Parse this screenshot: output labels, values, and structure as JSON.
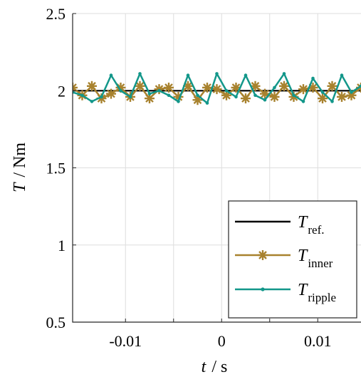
{
  "chart_data": {
    "type": "line",
    "xlabel": {
      "symbol": "t",
      "unit": "/ s"
    },
    "ylabel": {
      "symbol": "T",
      "unit": "/ Nm"
    },
    "xlim": [
      -0.0155,
      0.0145
    ],
    "ylim": [
      0.5,
      2.5
    ],
    "x_ticks": [
      -0.01,
      -0.005,
      0,
      0.005,
      0.01
    ],
    "x_tick_labels": [
      "-0.01",
      "",
      "0",
      "",
      "0.01"
    ],
    "y_ticks": [
      0.5,
      1,
      1.5,
      2,
      2.5
    ],
    "y_tick_labels": [
      "0.5",
      "1",
      "1.5",
      "2",
      "2.5"
    ],
    "grid": true,
    "legend_position": "bottom-right",
    "series": [
      {
        "symbol": "T",
        "subscript": "ref.",
        "color": "#000000",
        "marker": "none",
        "x": [
          -0.0155,
          0.0145
        ],
        "y": [
          2.0,
          2.0
        ]
      },
      {
        "symbol": "T",
        "subscript": "inner",
        "color": "#a8822e",
        "marker": "asterisk",
        "x": [
          -0.0155,
          -0.0145,
          -0.0135,
          -0.0125,
          -0.0115,
          -0.0105,
          -0.0095,
          -0.0085,
          -0.0075,
          -0.0065,
          -0.0055,
          -0.0045,
          -0.0035,
          -0.0025,
          -0.0015,
          -0.0005,
          0.0005,
          0.0015,
          0.0025,
          0.0035,
          0.0045,
          0.0055,
          0.0065,
          0.0075,
          0.0085,
          0.0095,
          0.0105,
          0.0115,
          0.0125,
          0.0135,
          0.0145
        ],
        "y": [
          2.02,
          1.97,
          2.03,
          1.95,
          1.98,
          2.02,
          1.96,
          2.03,
          1.95,
          2.01,
          2.02,
          1.96,
          2.03,
          1.94,
          2.02,
          2.01,
          1.97,
          2.02,
          1.95,
          2.03,
          1.98,
          1.96,
          2.03,
          1.96,
          2.01,
          2.02,
          1.95,
          2.03,
          1.96,
          1.97,
          2.02
        ]
      },
      {
        "symbol": "T",
        "subscript": "ripple",
        "color": "#13978a",
        "marker": "dot",
        "x": [
          -0.0155,
          -0.0145,
          -0.0135,
          -0.0125,
          -0.0115,
          -0.0105,
          -0.0095,
          -0.0085,
          -0.0075,
          -0.0065,
          -0.0055,
          -0.0045,
          -0.0035,
          -0.0025,
          -0.0015,
          -0.0005,
          0.0005,
          0.0015,
          0.0025,
          0.0035,
          0.0045,
          0.0055,
          0.0065,
          0.0075,
          0.0085,
          0.0095,
          0.0105,
          0.0115,
          0.0125,
          0.0135,
          0.0145
        ],
        "y": [
          1.99,
          1.97,
          1.93,
          1.96,
          2.1,
          2.0,
          1.96,
          2.11,
          1.98,
          2.0,
          1.97,
          1.93,
          2.1,
          1.97,
          1.92,
          2.11,
          2.0,
          1.96,
          2.1,
          1.97,
          1.94,
          2.02,
          2.11,
          1.97,
          1.93,
          2.08,
          1.99,
          1.93,
          2.1,
          1.99,
          2.03
        ]
      }
    ]
  }
}
